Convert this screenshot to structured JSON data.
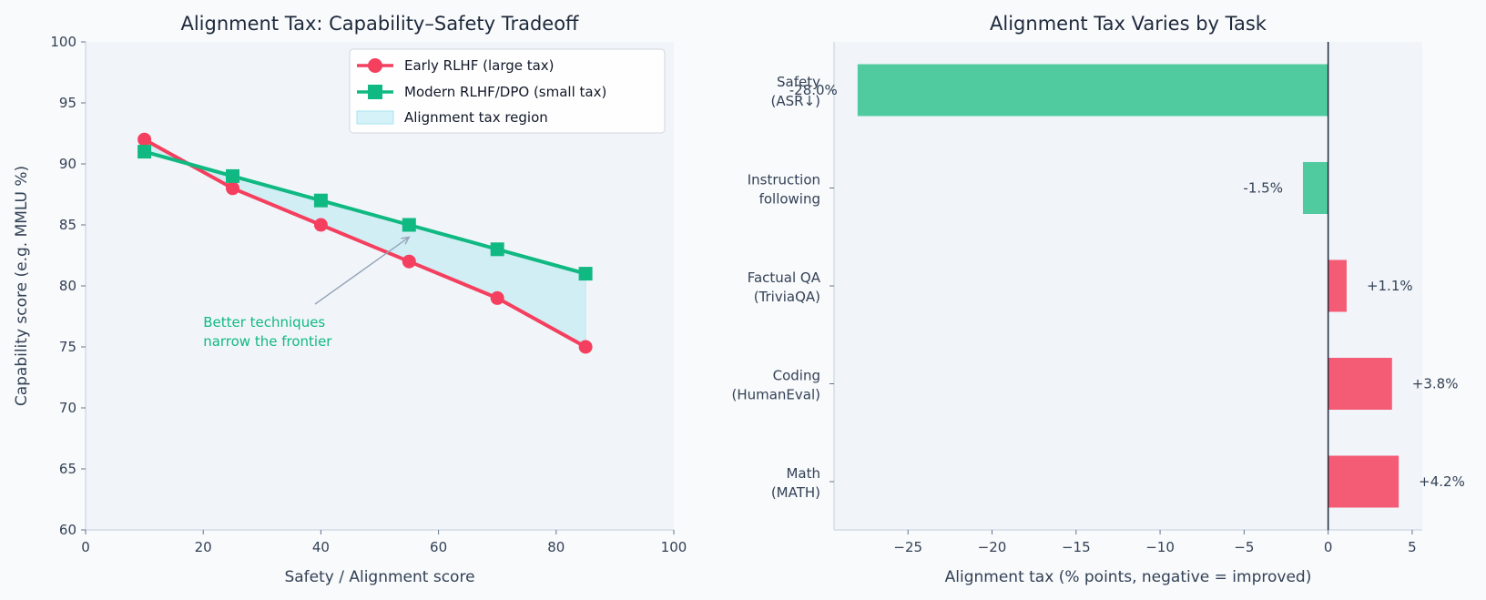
{
  "colors": {
    "early": "#f43f5e",
    "modern": "#10b981",
    "tax_fill": "#a5e4ef",
    "bar_positive": "#f43f5e",
    "bar_negative": "#34c38f",
    "plot_bg": "#f1f5f9",
    "arrow": "#94a3b8",
    "zero_line": "#1e293b"
  },
  "chart_data": [
    {
      "type": "line",
      "title": "Alignment Tax: Capability–Safety Tradeoff",
      "xlabel": "Safety / Alignment score",
      "ylabel": "Capability score (e.g. MMLU %)",
      "xlim": [
        0,
        100
      ],
      "ylim": [
        60,
        100
      ],
      "xticks": [
        0,
        20,
        40,
        60,
        80,
        100
      ],
      "yticks": [
        60,
        65,
        70,
        75,
        80,
        85,
        90,
        95,
        100
      ],
      "x": [
        10,
        25,
        40,
        55,
        70,
        85
      ],
      "series": [
        {
          "name": "Early RLHF (large tax)",
          "marker": "circle",
          "values": [
            92,
            88,
            85,
            82,
            79,
            75
          ]
        },
        {
          "name": "Modern RLHF/DPO (small tax)",
          "marker": "square",
          "values": [
            91,
            89,
            87,
            85,
            83,
            81
          ]
        }
      ],
      "fill_label": "Alignment tax region",
      "legend_position": "top-right",
      "annotation": {
        "lines": [
          "Better techniques",
          "narrow the frontier"
        ],
        "text_at": [
          20,
          77
        ],
        "arrow_from": [
          39,
          78.5
        ],
        "arrow_to": [
          55,
          84
        ]
      }
    },
    {
      "type": "bar",
      "orientation": "horizontal",
      "title": "Alignment Tax Varies by Task",
      "xlabel": "Alignment tax (% points, negative = improved)",
      "xlim": [
        -29.4,
        5.6
      ],
      "xticks": [
        -25,
        -20,
        -15,
        -10,
        -5,
        0,
        5
      ],
      "xtick_labels": [
        "−25",
        "−20",
        "−15",
        "−10",
        "−5",
        "0",
        "5"
      ],
      "categories": [
        [
          "Safety",
          "(ASR↓)"
        ],
        [
          "Instruction",
          "following"
        ],
        [
          "Factual QA",
          "(TriviaQA)"
        ],
        [
          "Coding",
          "(HumanEval)"
        ],
        [
          "Math",
          "(MATH)"
        ]
      ],
      "values": [
        -28.0,
        -1.5,
        1.1,
        3.8,
        4.2
      ],
      "value_labels": [
        "-28.0%",
        "-1.5%",
        "+1.1%",
        "+3.8%",
        "+4.2%"
      ]
    }
  ]
}
